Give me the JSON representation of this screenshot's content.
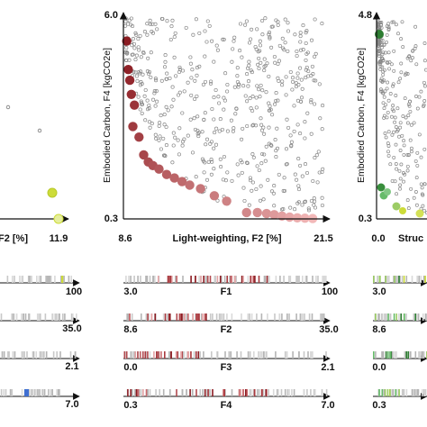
{
  "scatter_left": {
    "x_max_label": "11.9",
    "x_axis_label_fragment": "F2 [%]"
  },
  "scatter_middle": {
    "x_min_label": "8.6",
    "x_max_label": "21.5",
    "y_min_label": "0.3",
    "y_max_label": "6.0",
    "xlabel": "Light-weighting, F2 [%]",
    "ylabel": "Embodied Carbon, F4 [kgCO2e]"
  },
  "scatter_right": {
    "x_min_label": "0.0",
    "x_label_fragment": "Struc",
    "y_min_label": "0.3",
    "y_max_label": "4.8",
    "ylabel": "Embodied Carbon, F4 [kgCO2e]"
  },
  "strips_left": [
    {
      "right_label": "100"
    },
    {
      "right_label": "35.0"
    },
    {
      "right_label": "2.1"
    },
    {
      "right_label": "7.0"
    }
  ],
  "strips_middle": [
    {
      "name": "F1",
      "left_label": "3.0",
      "right_label": "100"
    },
    {
      "name": "F2",
      "left_label": "8.6",
      "right_label": "35.0"
    },
    {
      "name": "F3",
      "left_label": "0.0",
      "right_label": "2.1"
    },
    {
      "name": "F4",
      "left_label": "0.3",
      "right_label": "7.0"
    }
  ],
  "strips_right": [
    {
      "left_label": "3.0"
    },
    {
      "left_label": "8.6"
    },
    {
      "left_label": "0.0"
    },
    {
      "left_label": "0.3"
    }
  ],
  "colors": {
    "red_dark": "#8b1c22",
    "red_light": "#f2b8b8",
    "green_dark": "#2e7d32",
    "yellow": "#d4e157",
    "blue": "#3f6fd1",
    "gray": "#b0b0b0"
  },
  "chart_data": [
    {
      "type": "scatter",
      "xlim": [
        8.6,
        21.5
      ],
      "ylim": [
        0.3,
        6.0
      ],
      "xlabel": "Light-weighting, F2 [%]",
      "ylabel": "Embodied Carbon, F4 [kgCO2e]",
      "pareto_points": [
        {
          "x": 8.7,
          "y": 5.3
        },
        {
          "x": 8.8,
          "y": 4.5
        },
        {
          "x": 8.9,
          "y": 4.2
        },
        {
          "x": 9.0,
          "y": 3.8
        },
        {
          "x": 9.2,
          "y": 3.5
        },
        {
          "x": 9.1,
          "y": 2.9
        },
        {
          "x": 9.5,
          "y": 2.6
        },
        {
          "x": 9.8,
          "y": 2.1
        },
        {
          "x": 10.1,
          "y": 1.9
        },
        {
          "x": 10.4,
          "y": 1.8
        },
        {
          "x": 10.8,
          "y": 1.7
        },
        {
          "x": 11.3,
          "y": 1.55
        },
        {
          "x": 11.8,
          "y": 1.45
        },
        {
          "x": 12.3,
          "y": 1.35
        },
        {
          "x": 12.8,
          "y": 1.25
        },
        {
          "x": 13.5,
          "y": 1.15
        },
        {
          "x": 14.4,
          "y": 0.95
        },
        {
          "x": 15.2,
          "y": 0.8
        },
        {
          "x": 16.5,
          "y": 0.48
        },
        {
          "x": 17.2,
          "y": 0.48
        },
        {
          "x": 17.8,
          "y": 0.45
        },
        {
          "x": 18.3,
          "y": 0.42
        },
        {
          "x": 18.8,
          "y": 0.38
        },
        {
          "x": 19.3,
          "y": 0.35
        },
        {
          "x": 19.8,
          "y": 0.33
        },
        {
          "x": 20.3,
          "y": 0.32
        },
        {
          "x": 20.8,
          "y": 0.31
        }
      ]
    },
    {
      "type": "scatter",
      "xlim": [
        0.0,
        null
      ],
      "ylim": [
        0.3,
        4.8
      ],
      "ylabel": "Embodied Carbon, F4 [kgCO2e]"
    }
  ]
}
